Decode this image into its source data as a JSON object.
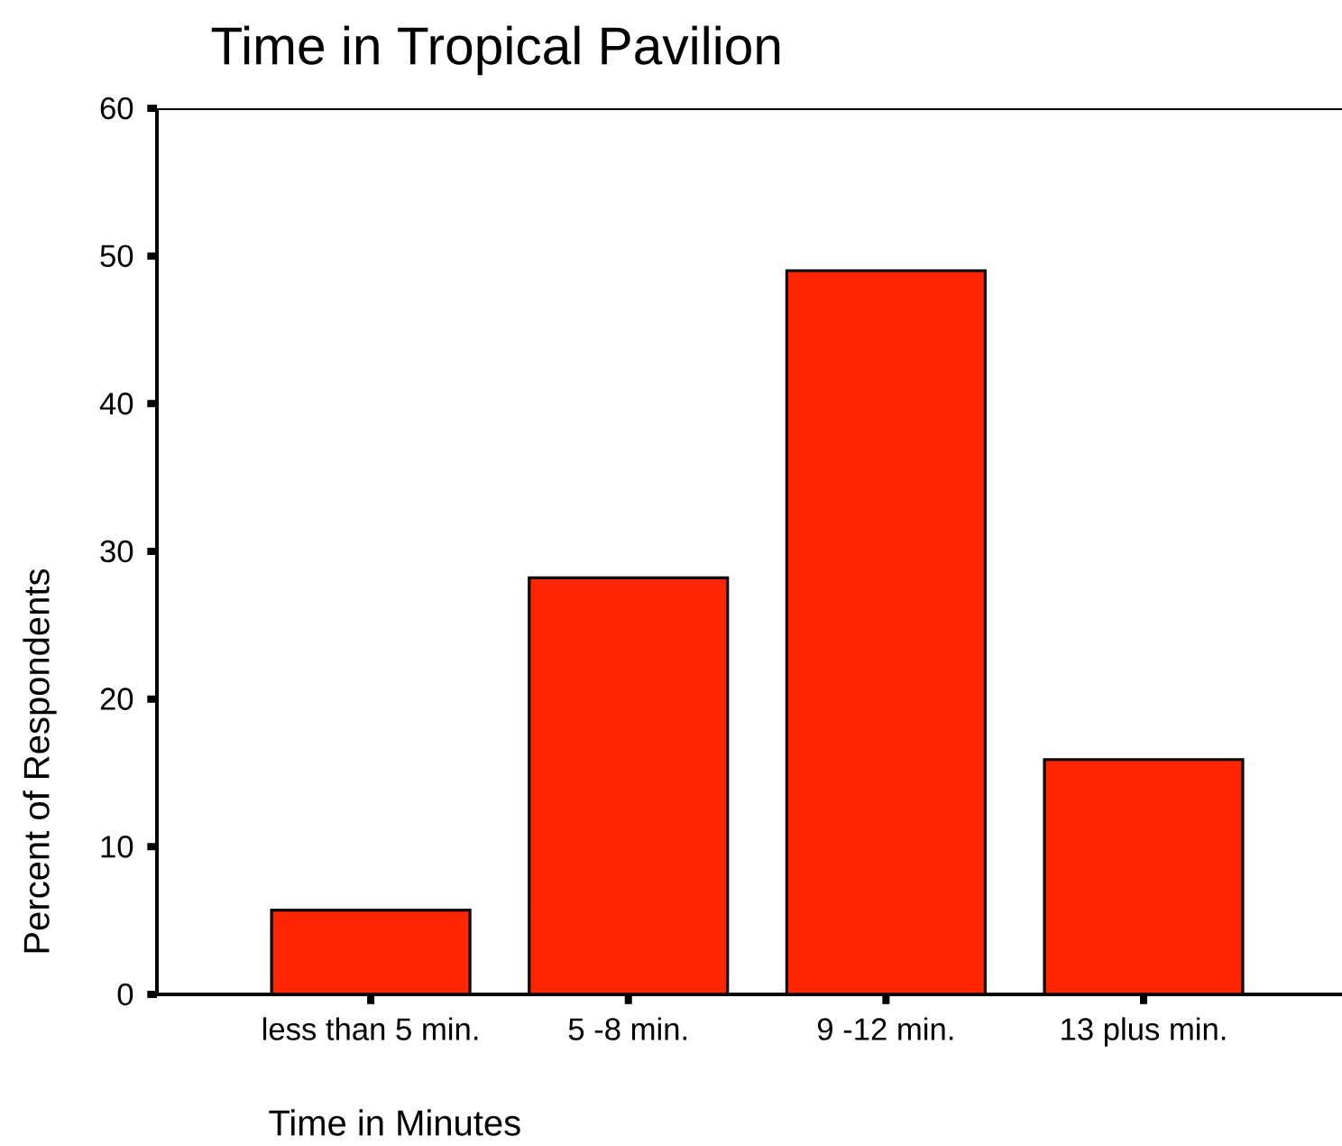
{
  "chart_data": {
    "type": "bar",
    "title": "Time in Tropical Pavilion",
    "xlabel": "Time in Minutes",
    "ylabel": "Percent of Respondents",
    "categories": [
      "less than 5 min.",
      "5 -8 min.",
      "9 -12 min.",
      "13 plus min."
    ],
    "values": [
      5.7,
      28.2,
      49.0,
      15.9
    ],
    "color": "#ff2600",
    "ylim": [
      0,
      60
    ],
    "yticks": [
      0,
      10,
      20,
      30,
      40,
      50,
      60
    ],
    "grid": false
  }
}
